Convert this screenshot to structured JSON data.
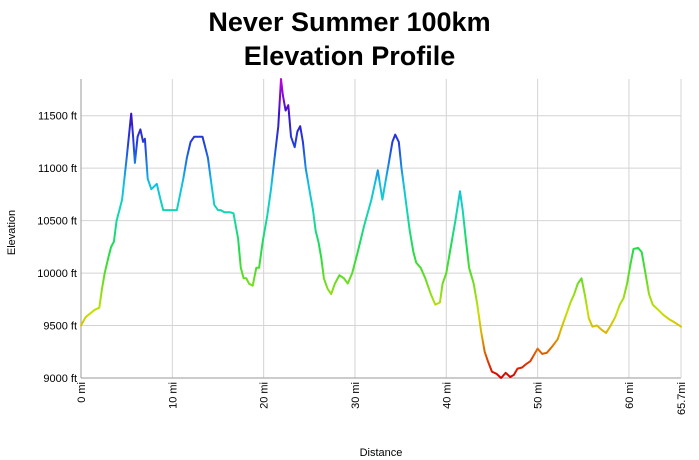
{
  "page": {
    "title_line1": "Never Summer 100km",
    "title_line2": "Elevation Profile"
  },
  "chart_data": {
    "type": "line",
    "title": "Never Summer 100km Elevation Profile",
    "xlabel": "Distance",
    "ylabel": "Elevation",
    "xlim": [
      0,
      65.7
    ],
    "ylim": [
      9000,
      11850
    ],
    "x_ticks": [
      "0 mi",
      "10 mi",
      "20 mi",
      "30 mi",
      "40 mi",
      "50 mi",
      "60 mi",
      "65.7mi"
    ],
    "x_tick_values": [
      0,
      10,
      20,
      30,
      40,
      50,
      60,
      65.7
    ],
    "y_ticks": [
      "9000 ft",
      "9500 ft",
      "10000 ft",
      "10500 ft",
      "11000 ft",
      "11500 ft"
    ],
    "y_tick_values": [
      9000,
      9500,
      10000,
      10500,
      11000,
      11500
    ],
    "grid": true,
    "color_by_elevation": true,
    "series": [
      {
        "x": [
          0,
          0.5,
          1.5,
          2,
          2.3,
          2.6,
          3,
          3.3,
          3.6,
          3.9,
          4.2,
          4.5,
          5,
          5.5,
          5.7,
          5.9,
          6.2,
          6.5,
          6.8,
          7,
          7.3,
          7.7,
          8.3,
          8.7,
          9,
          9.3,
          9.6,
          10.5,
          11.2,
          11.6,
          12,
          12.4,
          12.8,
          13.3,
          13.9,
          14.2,
          14.6,
          15,
          15.3,
          15.7,
          16.3,
          16.7,
          17.2,
          17.5,
          17.8,
          18.1,
          18.4,
          18.8,
          19.2,
          19.5,
          19.9,
          20.4,
          20.8,
          21.2,
          21.6,
          21.9,
          22.1,
          22.4,
          22.7,
          23,
          23.4,
          23.7,
          24,
          24.3,
          24.6,
          25,
          25.4,
          25.7,
          26,
          26.3,
          26.6,
          27,
          27.4,
          27.8,
          28.3,
          28.8,
          29.2,
          29.7,
          30.3,
          31,
          31.8,
          32.5,
          33,
          33.3,
          33.7,
          34.1,
          34.4,
          34.8,
          35.1,
          35.4,
          35.7,
          36,
          36.4,
          36.7,
          37.2,
          37.7,
          38.3,
          38.8,
          39.3,
          39.6,
          40,
          40.4,
          41,
          41.5,
          41.8,
          42.1,
          42.5,
          43,
          43.4,
          43.8,
          44.2,
          44.6,
          45,
          45.5,
          46,
          46.5,
          47,
          47.4,
          47.8,
          48.3,
          48.7,
          49.2,
          49.6,
          50,
          50.5,
          51,
          51.6,
          52.2,
          52.7,
          53.2,
          53.6,
          54,
          54.4,
          54.8,
          55.2,
          55.6,
          56,
          56.5,
          57,
          57.5,
          58,
          58.5,
          59,
          59.4,
          59.8,
          60.2,
          60.5,
          61,
          61.4,
          61.8,
          62.2,
          62.6,
          63.2,
          63.8,
          64.4,
          65,
          65.7
        ],
        "y": [
          9500,
          9580,
          9650,
          9670,
          9850,
          10000,
          10150,
          10250,
          10300,
          10500,
          10600,
          10700,
          11100,
          11520,
          11300,
          11050,
          11300,
          11370,
          11250,
          11280,
          10900,
          10800,
          10850,
          10700,
          10600,
          10600,
          10600,
          10600,
          10900,
          11100,
          11250,
          11300,
          11300,
          11300,
          11100,
          10900,
          10650,
          10600,
          10600,
          10580,
          10580,
          10570,
          10330,
          10050,
          9950,
          9950,
          9900,
          9880,
          10050,
          10050,
          10300,
          10550,
          10800,
          11100,
          11400,
          11850,
          11700,
          11550,
          11600,
          11300,
          11200,
          11350,
          11400,
          11250,
          11000,
          10800,
          10600,
          10400,
          10300,
          10150,
          9950,
          9850,
          9800,
          9900,
          9980,
          9950,
          9900,
          10000,
          10200,
          10450,
          10700,
          10980,
          10700,
          10850,
          11050,
          11250,
          11320,
          11250,
          11000,
          10800,
          10600,
          10400,
          10200,
          10100,
          10050,
          9950,
          9800,
          9700,
          9720,
          9900,
          10000,
          10200,
          10500,
          10780,
          10600,
          10350,
          10050,
          9900,
          9700,
          9450,
          9250,
          9150,
          9060,
          9040,
          9000,
          9050,
          9010,
          9030,
          9090,
          9100,
          9130,
          9160,
          9220,
          9280,
          9230,
          9240,
          9300,
          9370,
          9500,
          9620,
          9720,
          9800,
          9900,
          9950,
          9780,
          9570,
          9490,
          9500,
          9460,
          9430,
          9500,
          9580,
          9700,
          9760,
          9900,
          10100,
          10230,
          10240,
          10200,
          10000,
          9800,
          9700,
          9650,
          9600,
          9560,
          9530,
          9490
        ]
      }
    ]
  }
}
